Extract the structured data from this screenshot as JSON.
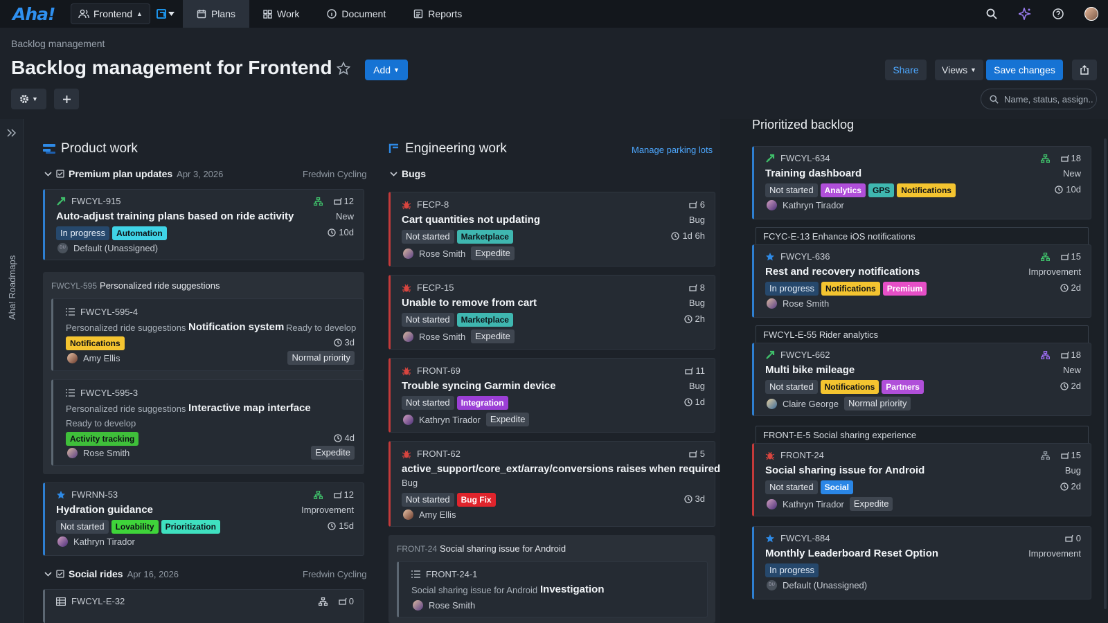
{
  "topbar": {
    "logo": "Aha!",
    "workspace": "Frontend",
    "nav": [
      {
        "label": "Plans",
        "icon": "calendar-icon"
      },
      {
        "label": "Work",
        "icon": "grid-icon"
      },
      {
        "label": "Document",
        "icon": "info-icon"
      },
      {
        "label": "Reports",
        "icon": "list-icon"
      }
    ],
    "active_nav": "Plans"
  },
  "header": {
    "breadcrumb": "Backlog management",
    "title": "Backlog management for Frontend",
    "add_label": "Add",
    "share_label": "Share",
    "views_label": "Views",
    "save_label": "Save changes",
    "search_placeholder": "Name, status, assign..."
  },
  "sidebar": {
    "label": "Aha! Roadmaps"
  },
  "colors": {
    "accent": "#1673d4",
    "bug": "#c43a3a",
    "link": "#4da8ff"
  },
  "product": {
    "title": "Product work",
    "group1": {
      "name": "Premium plan updates",
      "date": "Apr 3, 2026",
      "team": "Fredwin Cycling"
    },
    "card1": {
      "id": "FWCYL-915",
      "score": "12",
      "title": "Auto-adjust training plans based on ride activity",
      "type": "New",
      "status": "In progress",
      "tag": "Automation",
      "time": "10d",
      "assignee": "Default (Unassigned)",
      "initials": "DU"
    },
    "parking": {
      "id": "FWCYL-595",
      "name": "Personalized ride suggestions"
    },
    "sub1": {
      "id": "FWCYL-595-4",
      "parent": "Personalized ride suggestions",
      "title": "Notification system",
      "state": "Ready to develop",
      "tag": "Notifications",
      "time": "3d",
      "assignee": "Amy Ellis",
      "priority": "Normal priority"
    },
    "sub2": {
      "id": "FWCYL-595-3",
      "parent": "Personalized ride suggestions",
      "title": "Interactive map interface",
      "state": "Ready to develop",
      "tag": "Activity tracking",
      "time": "4d",
      "assignee": "Rose Smith",
      "priority": "Expedite"
    },
    "card2": {
      "id": "FWRNN-53",
      "score": "12",
      "title": "Hydration guidance",
      "type": "Improvement",
      "status": "Not started",
      "tags": [
        "Lovability",
        "Prioritization"
      ],
      "time": "15d",
      "assignee": "Kathryn Tirador"
    },
    "group2": {
      "name": "Social rides",
      "date": "Apr 16, 2026",
      "team": "Fredwin Cycling"
    },
    "card3": {
      "id": "FWCYL-E-32",
      "score": "0"
    }
  },
  "engineering": {
    "title": "Engineering work",
    "manage_label": "Manage parking lots",
    "group": "Bugs",
    "bugs": [
      {
        "id": "FECP-8",
        "score": "6",
        "title": "Cart quantities not updating",
        "type": "Bug",
        "status": "Not started",
        "tag": "Marketplace",
        "time": "1d 6h",
        "assignee": "Rose Smith",
        "priority": "Expedite"
      },
      {
        "id": "FECP-15",
        "score": "8",
        "title": "Unable to remove from cart",
        "type": "Bug",
        "status": "Not started",
        "tag": "Marketplace",
        "time": "2h",
        "assignee": "Rose Smith",
        "priority": "Expedite"
      },
      {
        "id": "FRONT-69",
        "score": "11",
        "title": "Trouble syncing Garmin device",
        "type": "Bug",
        "status": "Not started",
        "tag": "Integration",
        "time": "1d",
        "assignee": "Kathryn Tirador",
        "priority": "Expedite"
      },
      {
        "id": "FRONT-62",
        "score": "5",
        "title": "active_support/core_ext/array/conversions raises when required",
        "type": "Bug",
        "status": "Not started",
        "tag": "Bug Fix",
        "time": "3d",
        "assignee": "Amy Ellis"
      }
    ],
    "parking": {
      "id": "FRONT-24",
      "name": "Social sharing issue for Android"
    },
    "sub": {
      "id": "FRONT-24-1",
      "parent": "Social sharing issue for Android",
      "title": "Investigation",
      "assignee": "Rose Smith"
    }
  },
  "backlog": {
    "title": "Prioritized backlog",
    "c1": {
      "id": "FWCYL-634",
      "score": "18",
      "title": "Training dashboard",
      "type": "New",
      "status": "Not started",
      "tags": [
        "Analytics",
        "GPS",
        "Notifications"
      ],
      "time": "10d",
      "assignee": "Kathryn Tirador"
    },
    "e1": "FCYC-E-13 Enhance iOS notifications",
    "c2": {
      "id": "FWCYL-636",
      "score": "15",
      "title": "Rest and recovery notifications",
      "type": "Improvement",
      "status": "In progress",
      "tags": [
        "Notifications",
        "Premium"
      ],
      "time": "2d",
      "assignee": "Rose Smith"
    },
    "e2": "FWCYL-E-55 Rider analytics",
    "c3": {
      "id": "FWCYL-662",
      "score": "18",
      "title": "Multi bike mileage",
      "type": "New",
      "status": "Not started",
      "tags": [
        "Notifications",
        "Partners"
      ],
      "time": "2d",
      "assignee": "Claire George",
      "priority": "Normal priority"
    },
    "e3": "FRONT-E-5 Social sharing experience",
    "c4": {
      "id": "FRONT-24",
      "score": "15",
      "title": "Social sharing issue for Android",
      "type": "Bug",
      "status": "Not started",
      "tag": "Social",
      "time": "2d",
      "assignee": "Kathryn Tirador",
      "priority": "Expedite"
    },
    "c5": {
      "id": "FWCYL-884",
      "score": "0",
      "title": "Monthly Leaderboard Reset Option",
      "type": "Improvement",
      "status": "In progress",
      "assignee": "Default (Unassigned)",
      "initials": "DU"
    }
  }
}
